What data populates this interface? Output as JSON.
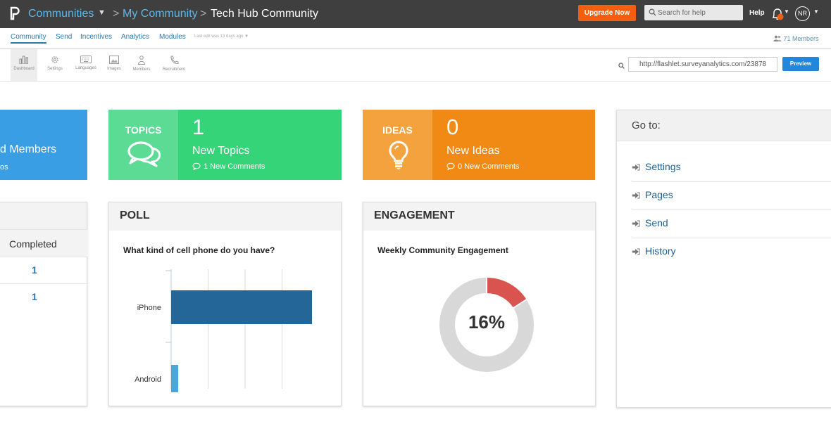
{
  "header": {
    "communities_label": "Communities",
    "my_community": "My Community",
    "current_page": "Tech Hub Community",
    "upgrade_label": "Upgrade Now",
    "search_placeholder": "Search for help",
    "help_label": "Help",
    "avatar_initials": "NR"
  },
  "subnav": {
    "items": [
      "Community",
      "Send",
      "Incentives",
      "Analytics",
      "Modules"
    ],
    "last_edit": "Last edit was 13 days ago",
    "members_link": "71 Members"
  },
  "toolbar": {
    "items": [
      "Dashboard",
      "Settings",
      "Languages",
      "Images",
      "Members",
      "Recruitment"
    ],
    "url": "http://flashlet.surveyanalytics.com/23878",
    "preview_label": "Preview"
  },
  "tiles": {
    "members": {
      "title": "d Members",
      "sub": "os"
    },
    "topics": {
      "label": "TOPICS",
      "count": "1",
      "title": "New Topics",
      "sub": "1 New Comments"
    },
    "ideas": {
      "label": "IDEAS",
      "count": "0",
      "title": "New Ideas",
      "sub": "0 New Comments"
    }
  },
  "left_panel": {
    "column_header": "Completed",
    "values": [
      "1",
      "1"
    ]
  },
  "poll": {
    "title": "POLL",
    "question": "What kind of cell phone do you have?"
  },
  "engagement": {
    "title": "ENGAGEMENT",
    "subtitle": "Weekly Community Engagement",
    "percent_label": "16%"
  },
  "goto": {
    "title": "Go to:",
    "items": [
      "Settings",
      "Pages",
      "Send",
      "History"
    ]
  },
  "colors": {
    "topbar": "#3f3f3f",
    "accent_blue": "#2386d8",
    "tile_blue": "#3a9ee4",
    "tile_green": "#36d479",
    "tile_orange": "#f08a15",
    "upgrade": "#f2600f",
    "donut_fill": "#d9534f",
    "donut_track": "#d8d8d8",
    "bar_dark": "#246698",
    "bar_light": "#4aa6dd"
  },
  "chart_data": [
    {
      "type": "bar",
      "orientation": "horizontal",
      "categories": [
        "iPhone",
        "Android"
      ],
      "values": [
        1,
        0.02
      ],
      "xlim": [
        0,
        1.1
      ]
    },
    {
      "type": "pie",
      "variant": "donut",
      "values": [
        16,
        84
      ]
    }
  ]
}
